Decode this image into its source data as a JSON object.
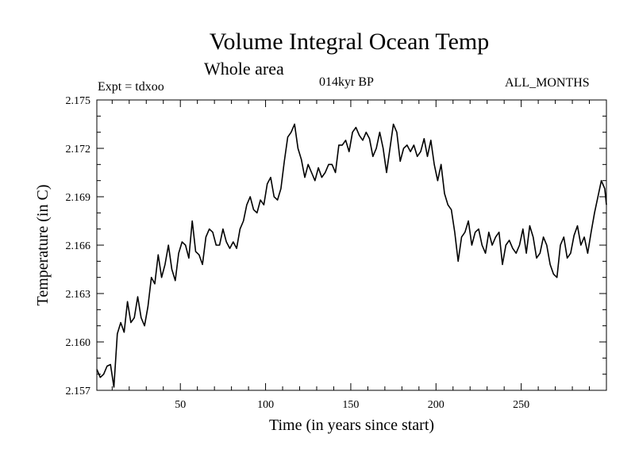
{
  "header": {
    "title": "Volume Integral Ocean Temp",
    "subtitle": "Whole area",
    "experiment": "Expt = tdxoo",
    "period": "014kyr BP",
    "months": "ALL_MONTHS"
  },
  "chart_data": {
    "type": "line",
    "title": "Volume Integral Ocean Temp",
    "subtitle": "Whole area",
    "xlabel": "Time (in years since start)",
    "ylabel": "Temperature (in C)",
    "xlim": [
      1,
      300
    ],
    "ylim": [
      2.157,
      2.175
    ],
    "xticks": [
      50,
      100,
      150,
      200,
      250
    ],
    "xtick_labels": [
      "50",
      "100",
      "150",
      "200",
      "250"
    ],
    "yticks": [
      2.157,
      2.16,
      2.163,
      2.166,
      2.169,
      2.172,
      2.175
    ],
    "ytick_labels": [
      "2.157",
      "2.160",
      "2.163",
      "2.166",
      "2.169",
      "2.172",
      "2.175"
    ],
    "grid": false,
    "legend": "none",
    "line_color": "#000000",
    "series": [
      {
        "x": [
          1,
          3,
          5,
          7,
          9,
          11,
          13,
          15,
          17,
          19,
          21,
          23,
          25,
          27,
          29,
          31,
          33,
          35,
          37,
          39,
          41,
          43,
          45,
          47,
          49,
          51,
          53,
          55,
          57,
          59,
          61,
          63,
          65,
          67,
          69,
          71,
          73,
          75,
          77,
          79,
          81,
          83,
          85,
          87,
          89,
          91,
          93,
          95,
          97,
          99,
          101,
          103,
          105,
          107,
          109,
          111,
          113,
          115,
          117,
          119,
          121,
          123,
          125,
          127,
          129,
          131,
          133,
          135,
          137,
          139,
          141,
          143,
          145,
          147,
          149,
          151,
          153,
          155,
          157,
          159,
          161,
          163,
          165,
          167,
          169,
          171,
          173,
          175,
          177,
          179,
          181,
          183,
          185,
          187,
          189,
          191,
          193,
          195,
          197,
          199,
          201,
          203,
          205,
          207,
          209,
          211,
          213,
          215,
          217,
          219,
          221,
          223,
          225,
          227,
          229,
          231,
          233,
          235,
          237,
          239,
          241,
          243,
          245,
          247,
          249,
          251,
          253,
          255,
          257,
          259,
          261,
          263,
          265,
          267,
          269,
          271,
          273,
          275,
          277,
          279,
          281,
          283,
          285,
          287,
          289,
          291,
          293,
          295,
          297,
          299,
          300
        ],
        "y": [
          2.1583,
          2.1578,
          2.158,
          2.1585,
          2.1586,
          2.1572,
          2.1605,
          2.1612,
          2.1606,
          2.1625,
          2.1612,
          2.1615,
          2.1628,
          2.1615,
          2.161,
          2.1622,
          2.164,
          2.1636,
          2.1654,
          2.164,
          2.1648,
          2.166,
          2.1645,
          2.1638,
          2.1655,
          2.1662,
          2.166,
          2.1652,
          2.1675,
          2.1656,
          2.1654,
          2.1648,
          2.1665,
          2.167,
          2.1668,
          2.166,
          2.166,
          2.167,
          2.1662,
          2.1658,
          2.1662,
          2.1658,
          2.167,
          2.1675,
          2.1685,
          2.169,
          2.1682,
          2.168,
          2.1688,
          2.1685,
          2.1698,
          2.1702,
          2.169,
          2.1688,
          2.1695,
          2.1712,
          2.1727,
          2.173,
          2.1735,
          2.172,
          2.1713,
          2.1702,
          2.171,
          2.1705,
          2.17,
          2.1708,
          2.1702,
          2.1705,
          2.171,
          2.171,
          2.1705,
          2.1722,
          2.1722,
          2.1725,
          2.1718,
          2.173,
          2.1733,
          2.1728,
          2.1725,
          2.173,
          2.1726,
          2.1715,
          2.172,
          2.173,
          2.172,
          2.1705,
          2.172,
          2.1735,
          2.173,
          2.1712,
          2.172,
          2.1722,
          2.1718,
          2.1722,
          2.1715,
          2.1718,
          2.1726,
          2.1715,
          2.1725,
          2.171,
          2.17,
          2.171,
          2.1692,
          2.1685,
          2.1682,
          2.1668,
          2.165,
          2.1665,
          2.1668,
          2.1675,
          2.166,
          2.1668,
          2.167,
          2.166,
          2.1655,
          2.1668,
          2.166,
          2.1665,
          2.1668,
          2.1648,
          2.166,
          2.1663,
          2.1658,
          2.1655,
          2.166,
          2.167,
          2.1655,
          2.1672,
          2.1665,
          2.1652,
          2.1655,
          2.1665,
          2.166,
          2.1648,
          2.1642,
          2.164,
          2.166,
          2.1665,
          2.1652,
          2.1655,
          2.1666,
          2.1672,
          2.166,
          2.1665,
          2.1655,
          2.1668,
          2.168,
          2.169,
          2.17,
          2.1695,
          2.1685
        ]
      }
    ]
  }
}
